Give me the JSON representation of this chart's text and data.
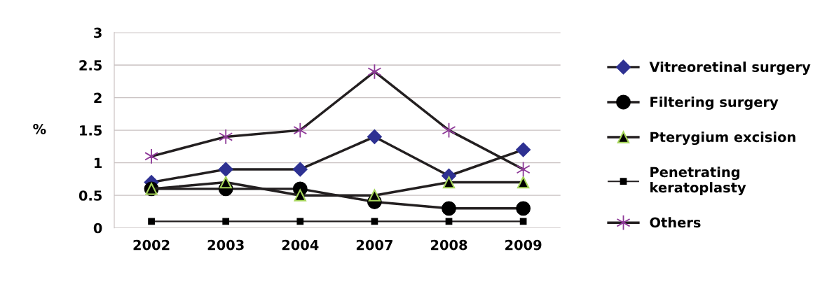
{
  "chart_data": {
    "type": "line",
    "ylabel": "%",
    "categories": [
      "2002",
      "2003",
      "2004",
      "2007",
      "2008",
      "2009"
    ],
    "series": [
      {
        "name": "Vitreoretinal surgery",
        "color": "#2e3192",
        "marker": "diamond",
        "values": [
          0.7,
          0.9,
          0.9,
          1.4,
          0.8,
          1.2
        ]
      },
      {
        "name": "Filtering surgery",
        "color": "#000000",
        "marker": "circle",
        "values": [
          0.6,
          0.6,
          0.6,
          0.4,
          0.3,
          0.3
        ]
      },
      {
        "name": "Pterygium excision",
        "color": "#000000",
        "marker": "triangle",
        "values": [
          0.6,
          0.7,
          0.5,
          0.5,
          0.7,
          0.7
        ]
      },
      {
        "name": "Penetrating\nkeratoplasty",
        "color": "#000000",
        "marker": "square",
        "values": [
          0.1,
          0.1,
          0.1,
          0.1,
          0.1,
          0.1
        ]
      },
      {
        "name": "Others",
        "color": "#8e3a98",
        "marker": "cross",
        "values": [
          1.1,
          1.4,
          1.5,
          2.4,
          1.5,
          0.9
        ]
      }
    ],
    "ylim": [
      0,
      3
    ],
    "yticks": [
      0,
      0.5,
      1,
      1.5,
      2,
      2.5,
      3
    ],
    "grid": "y",
    "legend": "right"
  }
}
